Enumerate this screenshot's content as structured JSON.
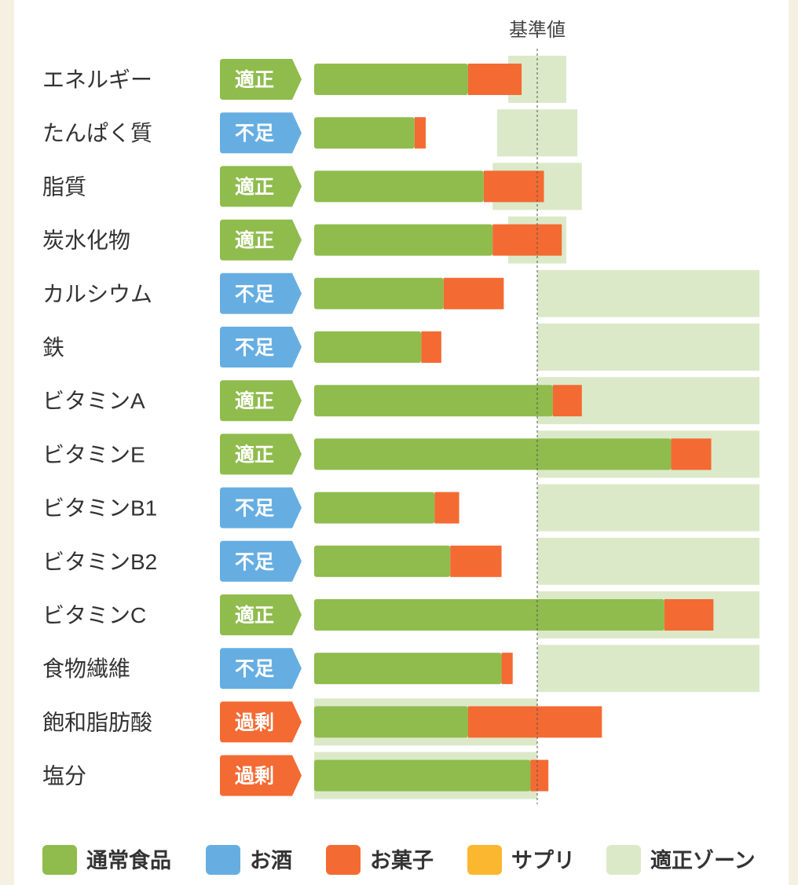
{
  "chart_data": {
    "type": "bar",
    "orientation": "horizontal",
    "stacked": true,
    "reference_label": "基準値",
    "reference_value": 100,
    "x_range": [
      0,
      200
    ],
    "grid": false,
    "legend_position": "bottom",
    "categories": [
      "エネルギー",
      "たんぱく質",
      "脂質",
      "炭水化物",
      "カルシウム",
      "鉄",
      "ビタミンA",
      "ビタミンE",
      "ビタミンB1",
      "ビタミンB2",
      "ビタミンC",
      "食物繊維",
      "飽和脂肪酸",
      "塩分"
    ],
    "status": [
      "適正",
      "不足",
      "適正",
      "適正",
      "不足",
      "不足",
      "適正",
      "適正",
      "不足",
      "不足",
      "適正",
      "不足",
      "過剰",
      "過剰"
    ],
    "series": [
      {
        "name": "通常食品",
        "values": [
          69,
          45,
          76,
          80,
          58,
          48,
          107,
          160,
          54,
          61,
          157,
          84,
          69,
          97
        ]
      },
      {
        "name": "お酒",
        "values": [
          0,
          0,
          0,
          0,
          0,
          0,
          0,
          0,
          0,
          0,
          0,
          0,
          0,
          0
        ]
      },
      {
        "name": "お菓子",
        "values": [
          24,
          5,
          27,
          31,
          27,
          9,
          13,
          18,
          11,
          23,
          22,
          5,
          60,
          8
        ]
      },
      {
        "name": "サプリ",
        "values": [
          0,
          0,
          0,
          0,
          0,
          0,
          0,
          0,
          0,
          0,
          0,
          0,
          0,
          0
        ]
      }
    ],
    "optimal_zone": [
      [
        87,
        113
      ],
      [
        82,
        118
      ],
      [
        80,
        120
      ],
      [
        87,
        113
      ],
      [
        100,
        200
      ],
      [
        100,
        200
      ],
      [
        100,
        200
      ],
      [
        100,
        200
      ],
      [
        100,
        200
      ],
      [
        100,
        200
      ],
      [
        100,
        200
      ],
      [
        100,
        200
      ],
      [
        0,
        100
      ],
      [
        0,
        100
      ]
    ],
    "legend": [
      {
        "label": "通常食品",
        "color": "#8fbc4d"
      },
      {
        "label": "お酒",
        "color": "#66aee2"
      },
      {
        "label": "お菓子",
        "color": "#f46a33"
      },
      {
        "label": "サプリ",
        "color": "#fbb72f"
      },
      {
        "label": "適正ゾーン",
        "color": "#dce9c9"
      }
    ]
  },
  "colors": {
    "normal_food": "#8fbc4d",
    "alcohol": "#66aee2",
    "snacks": "#f46a33",
    "supplement": "#fbb72f",
    "optimal_zone": "#dce9c9",
    "status_ok": "#8fbc4d",
    "status_low": "#66aee2",
    "status_high": "#f46a33"
  }
}
